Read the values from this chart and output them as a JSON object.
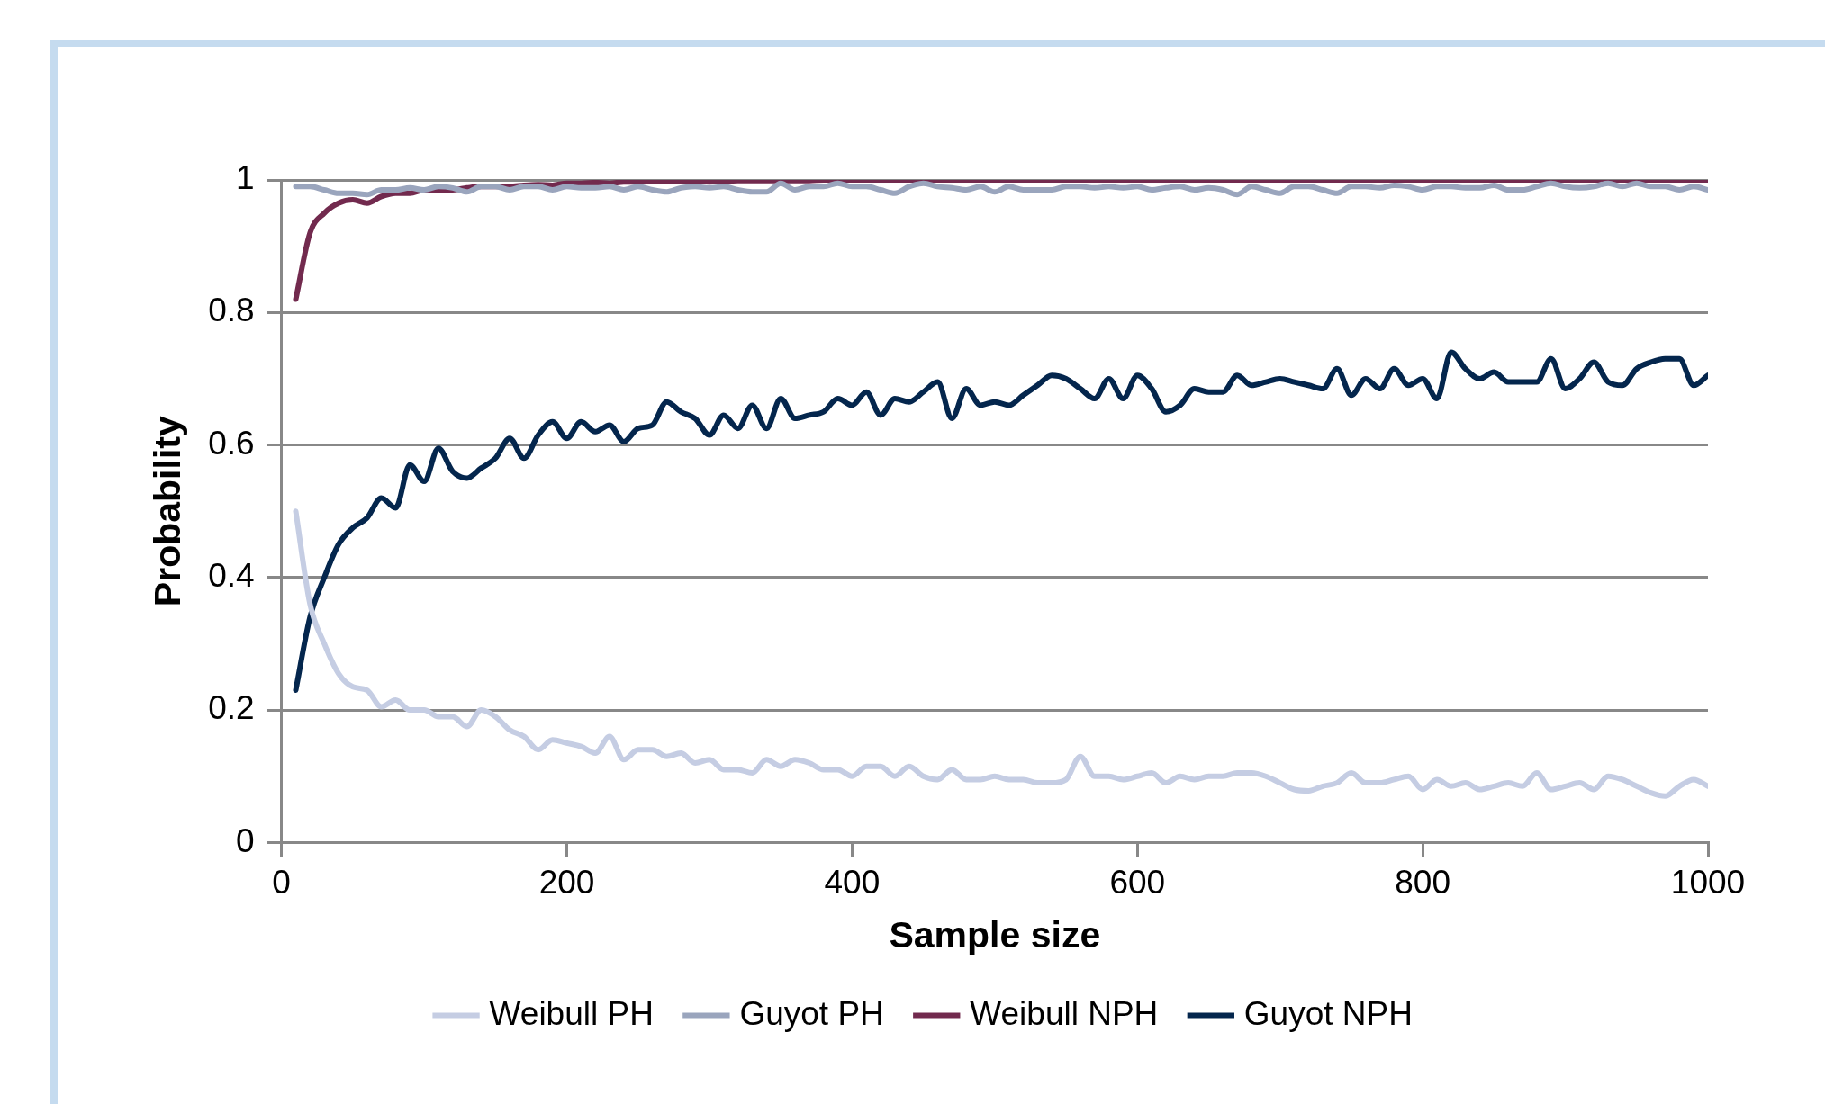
{
  "chart_data": {
    "type": "line",
    "xlabel": "Sample size",
    "ylabel": "Probability",
    "x": [
      10,
      20,
      30,
      40,
      50,
      60,
      70,
      80,
      90,
      100,
      110,
      120,
      130,
      140,
      150,
      160,
      170,
      180,
      190,
      200,
      210,
      220,
      230,
      240,
      250,
      260,
      270,
      280,
      290,
      300,
      310,
      320,
      330,
      340,
      350,
      360,
      370,
      380,
      390,
      400,
      410,
      420,
      430,
      440,
      450,
      460,
      470,
      480,
      490,
      500,
      510,
      520,
      530,
      540,
      550,
      560,
      570,
      580,
      590,
      600,
      610,
      620,
      630,
      640,
      650,
      660,
      670,
      680,
      690,
      700,
      710,
      720,
      730,
      740,
      750,
      760,
      770,
      780,
      790,
      800,
      810,
      820,
      830,
      840,
      850,
      860,
      870,
      880,
      890,
      900,
      910,
      920,
      930,
      940,
      950,
      960,
      970,
      980,
      990,
      1000
    ],
    "series": [
      {
        "name": "Weibull PH",
        "color": "#c5cde3",
        "values": [
          0.5,
          0.36,
          0.3,
          0.255,
          0.235,
          0.23,
          0.205,
          0.215,
          0.2,
          0.2,
          0.19,
          0.19,
          0.175,
          0.2,
          0.19,
          0.17,
          0.16,
          0.14,
          0.155,
          0.15,
          0.145,
          0.135,
          0.16,
          0.125,
          0.14,
          0.14,
          0.13,
          0.135,
          0.12,
          0.125,
          0.11,
          0.11,
          0.105,
          0.125,
          0.115,
          0.125,
          0.12,
          0.11,
          0.11,
          0.1,
          0.115,
          0.115,
          0.1,
          0.115,
          0.1,
          0.095,
          0.11,
          0.095,
          0.095,
          0.1,
          0.095,
          0.095,
          0.09,
          0.09,
          0.095,
          0.13,
          0.1,
          0.1,
          0.095,
          0.1,
          0.105,
          0.09,
          0.1,
          0.095,
          0.1,
          0.1,
          0.105,
          0.105,
          0.1,
          0.09,
          0.08,
          0.078,
          0.085,
          0.09,
          0.105,
          0.09,
          0.09,
          0.095,
          0.1,
          0.08,
          0.095,
          0.085,
          0.09,
          0.08,
          0.085,
          0.09,
          0.085,
          0.105,
          0.08,
          0.085,
          0.09,
          0.08,
          0.1,
          0.095,
          0.085,
          0.075,
          0.07,
          0.085,
          0.095,
          0.085
        ]
      },
      {
        "name": "Guyot PH",
        "color": "#9aa5bd",
        "values": [
          0.99,
          0.99,
          0.985,
          0.98,
          0.98,
          0.978,
          0.985,
          0.985,
          0.988,
          0.985,
          0.99,
          0.988,
          0.982,
          0.99,
          0.99,
          0.985,
          0.99,
          0.99,
          0.985,
          0.99,
          0.988,
          0.988,
          0.99,
          0.985,
          0.99,
          0.985,
          0.982,
          0.988,
          0.99,
          0.988,
          0.99,
          0.985,
          0.982,
          0.982,
          0.995,
          0.985,
          0.99,
          0.99,
          0.995,
          0.99,
          0.99,
          0.985,
          0.98,
          0.99,
          0.995,
          0.99,
          0.988,
          0.985,
          0.99,
          0.982,
          0.99,
          0.985,
          0.985,
          0.985,
          0.99,
          0.99,
          0.988,
          0.99,
          0.988,
          0.99,
          0.985,
          0.988,
          0.99,
          0.985,
          0.988,
          0.985,
          0.978,
          0.99,
          0.985,
          0.98,
          0.99,
          0.99,
          0.985,
          0.98,
          0.99,
          0.99,
          0.988,
          0.992,
          0.99,
          0.985,
          0.99,
          0.99,
          0.988,
          0.988,
          0.992,
          0.985,
          0.985,
          0.99,
          0.995,
          0.99,
          0.988,
          0.99,
          0.995,
          0.99,
          0.995,
          0.99,
          0.99,
          0.985,
          0.99,
          0.985
        ]
      },
      {
        "name": "Weibull NPH",
        "color": "#722a4e",
        "values": [
          0.82,
          0.92,
          0.95,
          0.965,
          0.97,
          0.965,
          0.975,
          0.98,
          0.98,
          0.985,
          0.985,
          0.985,
          0.988,
          0.99,
          0.99,
          0.99,
          0.992,
          0.993,
          0.992,
          0.995,
          0.995,
          0.996,
          0.995,
          0.997,
          0.997,
          0.998,
          0.998,
          0.998,
          0.998,
          0.997,
          0.998,
          0.999,
          0.999,
          0.999,
          0.999,
          0.999,
          0.999,
          1,
          1,
          1,
          1,
          1,
          1,
          1,
          1,
          1,
          1,
          1,
          1,
          1,
          1,
          1,
          1,
          1,
          1,
          1,
          1,
          1,
          1,
          1,
          1,
          1,
          1,
          1,
          1,
          1,
          1,
          1,
          1,
          1,
          1,
          1,
          1,
          1,
          1,
          1,
          1,
          1,
          1,
          1,
          1,
          1,
          1,
          1,
          1,
          1,
          1,
          1,
          1,
          1,
          1,
          1,
          1,
          1,
          1,
          1,
          1,
          1,
          1,
          1
        ]
      },
      {
        "name": "Guyot NPH",
        "color": "#04264d",
        "values": [
          0.23,
          0.34,
          0.4,
          0.45,
          0.475,
          0.49,
          0.52,
          0.505,
          0.57,
          0.545,
          0.595,
          0.56,
          0.55,
          0.565,
          0.58,
          0.61,
          0.58,
          0.615,
          0.635,
          0.61,
          0.635,
          0.62,
          0.63,
          0.605,
          0.625,
          0.63,
          0.665,
          0.65,
          0.64,
          0.615,
          0.645,
          0.625,
          0.66,
          0.625,
          0.67,
          0.64,
          0.645,
          0.65,
          0.67,
          0.66,
          0.68,
          0.645,
          0.67,
          0.665,
          0.68,
          0.695,
          0.64,
          0.685,
          0.66,
          0.665,
          0.66,
          0.675,
          0.69,
          0.705,
          0.7,
          0.685,
          0.67,
          0.7,
          0.67,
          0.705,
          0.685,
          0.65,
          0.66,
          0.685,
          0.68,
          0.68,
          0.705,
          0.69,
          0.695,
          0.7,
          0.695,
          0.69,
          0.685,
          0.715,
          0.675,
          0.7,
          0.685,
          0.715,
          0.69,
          0.7,
          0.67,
          0.74,
          0.715,
          0.7,
          0.71,
          0.695,
          0.695,
          0.695,
          0.73,
          0.685,
          0.7,
          0.725,
          0.695,
          0.69,
          0.715,
          0.725,
          0.73,
          0.73,
          0.69,
          0.705
        ]
      }
    ],
    "xlim": [
      0,
      1000
    ],
    "xticks": [
      0,
      200,
      400,
      600,
      800,
      1000
    ],
    "ylim": [
      0,
      1
    ],
    "yticks": [
      0,
      0.2,
      0.4,
      0.6,
      0.8,
      1
    ],
    "grid": "y",
    "legend": "bottom",
    "marker": "none",
    "line_style": "solid"
  }
}
